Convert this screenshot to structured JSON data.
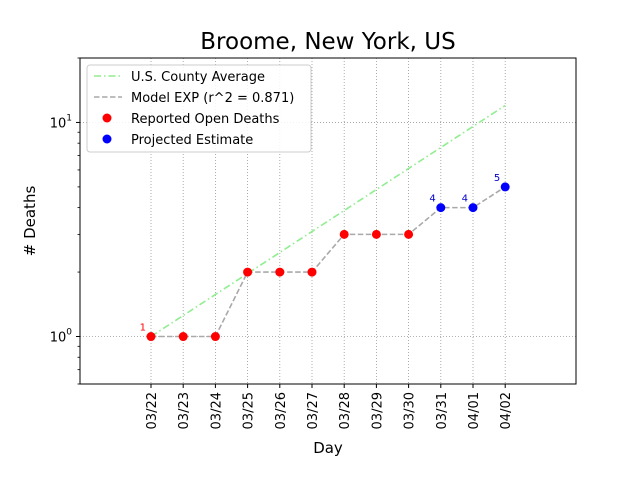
{
  "chart_data": {
    "type": "scatter",
    "title": "Broome, New York, US",
    "xlabel": "Day",
    "ylabel": "# Deaths",
    "yscale": "log",
    "ylim": [
      0.6,
      20
    ],
    "grid": true,
    "legend_position": "top-left",
    "categories": [
      "03/22",
      "03/23",
      "03/24",
      "03/25",
      "03/26",
      "03/27",
      "03/28",
      "03/29",
      "03/30",
      "03/31",
      "04/01",
      "04/02"
    ],
    "y_ticks": [
      {
        "value": 1,
        "label": "10^0",
        "base": "10",
        "exp": "0"
      },
      {
        "value": 10,
        "label": "10^1",
        "base": "10",
        "exp": "1"
      }
    ],
    "series": [
      {
        "name": "U.S. County Average",
        "style": "dash-dot",
        "color": "#90ee90",
        "x": [
          "03/22",
          "04/02"
        ],
        "values": [
          1.0,
          12.0
        ]
      },
      {
        "name": "Model EXP (r^2 = 0.871)",
        "style": "dashed",
        "color": "#a9a9a9",
        "x": [
          "03/22",
          "03/23",
          "03/24",
          "03/25",
          "03/26",
          "03/27",
          "03/28",
          "03/29",
          "03/30",
          "03/31",
          "04/01",
          "04/02"
        ],
        "values": [
          1,
          1,
          1,
          2,
          2,
          2,
          3,
          3,
          3,
          4,
          4,
          5
        ]
      },
      {
        "name": "Reported Open Deaths",
        "style": "marker",
        "color": "#ff0000",
        "x": [
          "03/22",
          "03/23",
          "03/24",
          "03/25",
          "03/26",
          "03/27",
          "03/28",
          "03/29",
          "03/30"
        ],
        "values": [
          1,
          1,
          1,
          2,
          2,
          2,
          3,
          3,
          3
        ]
      },
      {
        "name": "Projected Estimate",
        "style": "marker",
        "color": "#0000ff",
        "x": [
          "03/31",
          "04/01",
          "04/02"
        ],
        "values": [
          4,
          4,
          5
        ]
      }
    ],
    "annotations": [
      {
        "x": "03/22",
        "y": 1,
        "text": "1",
        "color": "#ff0000"
      },
      {
        "x": "03/31",
        "y": 4,
        "text": "4",
        "color": "#0000cc"
      },
      {
        "x": "04/01",
        "y": 4,
        "text": "4",
        "color": "#0000cc"
      },
      {
        "x": "04/02",
        "y": 5,
        "text": "5",
        "color": "#0000cc"
      }
    ]
  }
}
